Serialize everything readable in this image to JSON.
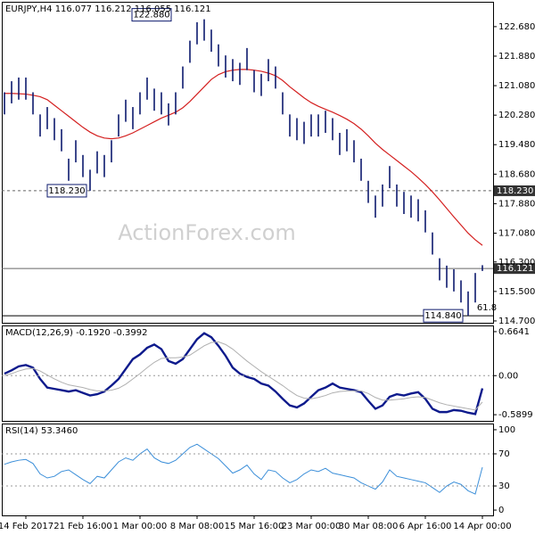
{
  "chart_data": [
    {
      "type": "ohlc",
      "title": "EURJPY,H4  116.077 116.212 116.055 116.121",
      "watermark": "ActionForex.com",
      "categories": [
        null,
        null,
        null,
        "14 Feb 2017",
        null,
        null,
        null,
        null,
        null,
        null,
        null,
        "21 Feb 16:00",
        null,
        null,
        null,
        null,
        null,
        null,
        null,
        "1 Mar 00:00",
        null,
        null,
        null,
        null,
        null,
        null,
        null,
        "8 Mar 08:00",
        null,
        null,
        null,
        null,
        null,
        null,
        null,
        "15 Mar 16:00",
        null,
        null,
        null,
        null,
        null,
        null,
        null,
        "23 Mar 00:00",
        null,
        null,
        null,
        null,
        null,
        null,
        null,
        "30 Mar 08:00",
        null,
        null,
        null,
        null,
        null,
        null,
        null,
        "6 Apr 16:00",
        null,
        null,
        null,
        null,
        null,
        null,
        null,
        "14 Apr 00:00"
      ],
      "high": [
        120.9,
        121.2,
        121.3,
        121.3,
        120.9,
        120.3,
        120.5,
        120.2,
        119.9,
        119.1,
        119.6,
        119.2,
        118.8,
        119.3,
        119.2,
        119.6,
        120.3,
        120.7,
        120.5,
        120.9,
        121.3,
        121.0,
        120.9,
        120.6,
        120.9,
        121.6,
        122.3,
        122.8,
        122.88,
        122.6,
        122.2,
        121.9,
        121.8,
        121.7,
        122.1,
        121.5,
        121.4,
        121.8,
        121.6,
        120.9,
        120.3,
        120.2,
        120.1,
        120.3,
        120.3,
        120.4,
        120.2,
        119.8,
        119.9,
        119.6,
        119.1,
        118.5,
        118.1,
        118.4,
        118.9,
        118.4,
        118.2,
        118.1,
        118.0,
        117.7,
        117.1,
        116.4,
        116.2,
        116.1,
        115.8,
        115.5,
        116.0,
        116.212
      ],
      "low": [
        120.3,
        120.6,
        120.7,
        120.7,
        120.3,
        119.7,
        119.9,
        119.6,
        119.3,
        118.5,
        119.0,
        118.6,
        118.23,
        118.7,
        118.6,
        119.0,
        119.7,
        120.1,
        119.9,
        120.3,
        120.7,
        120.4,
        120.3,
        120.0,
        120.3,
        121.0,
        121.7,
        122.2,
        122.3,
        122.0,
        121.6,
        121.3,
        121.2,
        121.1,
        121.5,
        120.9,
        120.8,
        121.2,
        121.0,
        120.3,
        119.7,
        119.6,
        119.5,
        119.7,
        119.7,
        119.8,
        119.6,
        119.2,
        119.3,
        119.0,
        118.5,
        117.9,
        117.5,
        117.8,
        118.3,
        117.8,
        117.6,
        117.5,
        117.4,
        117.1,
        116.5,
        115.8,
        115.6,
        115.5,
        115.2,
        114.84,
        115.2,
        116.055
      ],
      "color": "#0d1a6e",
      "ma": {
        "color": "#d42020",
        "values": [
          120.87,
          120.87,
          120.86,
          120.85,
          120.82,
          120.78,
          120.7,
          120.55,
          120.4,
          120.25,
          120.1,
          119.95,
          119.82,
          119.72,
          119.66,
          119.64,
          119.66,
          119.72,
          119.8,
          119.9,
          120.0,
          120.1,
          120.2,
          120.28,
          120.36,
          120.48,
          120.65,
          120.85,
          121.05,
          121.25,
          121.38,
          121.46,
          121.5,
          121.52,
          121.52,
          121.5,
          121.47,
          121.42,
          121.35,
          121.22,
          121.05,
          120.9,
          120.75,
          120.62,
          120.52,
          120.44,
          120.36,
          120.27,
          120.17,
          120.05,
          119.9,
          119.72,
          119.52,
          119.35,
          119.2,
          119.05,
          118.9,
          118.75,
          118.58,
          118.4,
          118.2,
          117.98,
          117.75,
          117.52,
          117.3,
          117.08,
          116.9,
          116.75
        ]
      },
      "ylim": [
        114.65,
        123.33
      ],
      "yticks": [
        {
          "value": 122.68,
          "label": "122.680"
        },
        {
          "value": 121.88,
          "label": "121.880"
        },
        {
          "value": 121.08,
          "label": "121.080"
        },
        {
          "value": 120.28,
          "label": "120.280"
        },
        {
          "value": 119.48,
          "label": "119.480"
        },
        {
          "value": 118.68,
          "label": "118.680"
        },
        {
          "value": 117.88,
          "label": "117.880"
        },
        {
          "value": 117.08,
          "label": "117.080"
        },
        {
          "value": 116.3,
          "label": "116.300"
        },
        {
          "value": 115.5,
          "label": "115.500"
        },
        {
          "value": 114.7,
          "label": "114.700"
        }
      ],
      "hlines": [
        {
          "value": 118.23,
          "label": "118.230",
          "style": "dashed"
        },
        {
          "value": 116.121,
          "label": "116.121",
          "style": "solid"
        },
        {
          "value": 114.84,
          "style": "solid"
        }
      ],
      "annotations": [
        {
          "value": 122.88,
          "label": "122.880"
        },
        {
          "value": 118.23,
          "label": "118.230"
        },
        {
          "value": 114.84,
          "label": "114.840"
        },
        {
          "label": "61.8"
        }
      ]
    },
    {
      "type": "line",
      "title": "MACD(12,26,9) -0.1920 -0.3992",
      "series": [
        {
          "color": "#0d1a8c",
          "values": [
            0.03,
            0.08,
            0.14,
            0.16,
            0.12,
            -0.05,
            -0.18,
            -0.2,
            -0.22,
            -0.24,
            -0.22,
            -0.26,
            -0.3,
            -0.28,
            -0.24,
            -0.15,
            -0.05,
            0.1,
            0.25,
            0.32,
            0.42,
            0.47,
            0.4,
            0.22,
            0.18,
            0.25,
            0.4,
            0.55,
            0.64,
            0.58,
            0.45,
            0.3,
            0.12,
            0.03,
            -0.02,
            -0.05,
            -0.12,
            -0.15,
            -0.24,
            -0.35,
            -0.45,
            -0.48,
            -0.42,
            -0.32,
            -0.22,
            -0.18,
            -0.12,
            -0.18,
            -0.2,
            -0.22,
            -0.25,
            -0.38,
            -0.5,
            -0.45,
            -0.32,
            -0.28,
            -0.3,
            -0.27,
            -0.25,
            -0.35,
            -0.5,
            -0.55,
            -0.55,
            -0.52,
            -0.53,
            -0.56,
            -0.58,
            -0.192
          ]
        },
        {
          "color": "#b0b0b0",
          "values": [
            0.0,
            0.03,
            0.07,
            0.1,
            0.11,
            0.07,
            0.01,
            -0.05,
            -0.1,
            -0.14,
            -0.16,
            -0.18,
            -0.21,
            -0.23,
            -0.23,
            -0.22,
            -0.19,
            -0.13,
            -0.05,
            0.03,
            0.12,
            0.2,
            0.26,
            0.27,
            0.27,
            0.28,
            0.31,
            0.38,
            0.45,
            0.5,
            0.51,
            0.47,
            0.4,
            0.31,
            0.22,
            0.14,
            0.06,
            -0.01,
            -0.08,
            -0.15,
            -0.23,
            -0.3,
            -0.34,
            -0.35,
            -0.33,
            -0.3,
            -0.26,
            -0.24,
            -0.23,
            -0.23,
            -0.23,
            -0.27,
            -0.33,
            -0.37,
            -0.37,
            -0.36,
            -0.35,
            -0.33,
            -0.32,
            -0.33,
            -0.37,
            -0.41,
            -0.44,
            -0.46,
            -0.48,
            -0.5,
            -0.52,
            -0.3992
          ]
        }
      ],
      "ylim": [
        -0.683,
        0.744
      ],
      "yticks": [
        0.6641,
        {
          "value": 0,
          "label": "0.00"
        },
        -0.5899
      ],
      "levels": [
        0
      ]
    },
    {
      "type": "line",
      "title": "RSI(14) 53.3460",
      "series": [
        {
          "color": "#3c8fd9",
          "values": [
            57,
            60,
            62,
            63,
            58,
            45,
            40,
            42,
            48,
            50,
            44,
            38,
            33,
            42,
            40,
            50,
            60,
            65,
            62,
            70,
            76,
            65,
            60,
            58,
            62,
            70,
            78,
            82,
            76,
            70,
            64,
            55,
            46,
            50,
            56,
            45,
            38,
            50,
            48,
            40,
            34,
            38,
            45,
            50,
            48,
            52,
            46,
            44,
            42,
            40,
            34,
            30,
            26,
            35,
            50,
            42,
            40,
            38,
            36,
            34,
            28,
            22,
            30,
            35,
            32,
            24,
            20,
            53.346
          ]
        }
      ],
      "ylim": [
        -6.6,
        106.6
      ],
      "yticks": [
        100,
        70,
        30,
        0
      ],
      "levels": [
        70,
        30
      ]
    }
  ]
}
